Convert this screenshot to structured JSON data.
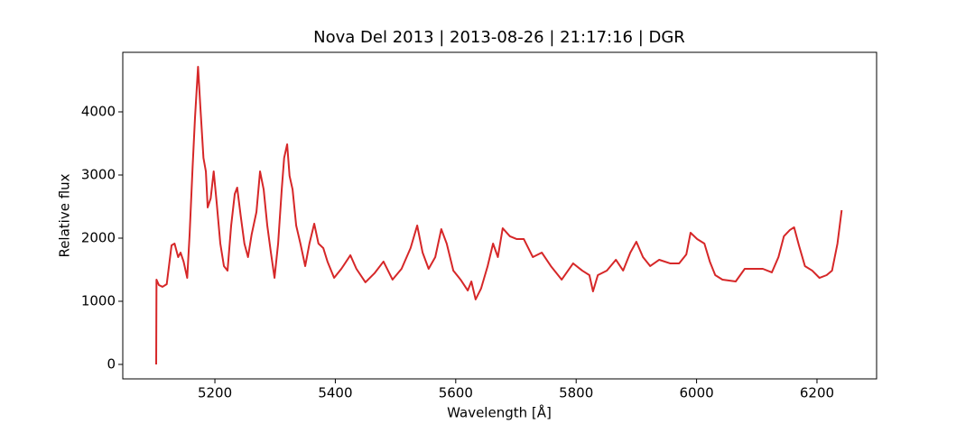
{
  "chart_data": {
    "type": "line",
    "title": "Nova Del 2013 | 2013-08-26 | 21:17:16 | DGR",
    "x_label": "Wavelength [Å]",
    "y_label": "Relative flux",
    "xlim": [
      5047,
      6299
    ],
    "ylim": [
      -229,
      4943
    ],
    "xticks": [
      5200,
      5400,
      5600,
      5800,
      6000,
      6200
    ],
    "yticks": [
      0,
      1000,
      2000,
      3000,
      4000
    ],
    "grid": false,
    "x": [
      5102.5,
      5103,
      5107,
      5113,
      5120,
      5128,
      5133,
      5139,
      5143,
      5148,
      5154,
      5158,
      5163,
      5167,
      5172,
      5176,
      5181,
      5185,
      5188,
      5193,
      5198,
      5203,
      5209,
      5215,
      5221,
      5227,
      5233,
      5237,
      5243,
      5249,
      5255,
      5261,
      5269,
      5275,
      5281,
      5287,
      5293,
      5299,
      5305,
      5311,
      5315,
      5320,
      5324,
      5329,
      5335,
      5342,
      5350,
      5357,
      5365,
      5372,
      5380,
      5387,
      5398,
      5410,
      5425,
      5435,
      5450,
      5465,
      5480,
      5495,
      5510,
      5525,
      5536,
      5545,
      5555,
      5566,
      5576,
      5585,
      5596,
      5608,
      5620,
      5626,
      5633,
      5642,
      5653,
      5662,
      5670,
      5678,
      5690,
      5701,
      5713,
      5728,
      5743,
      5758,
      5776,
      5795,
      5810,
      5822,
      5828,
      5836,
      5851,
      5866,
      5878,
      5890,
      5900,
      5911,
      5923,
      5938,
      5956,
      5971,
      5983,
      5990,
      6001,
      6013,
      6022,
      6031,
      6043,
      6065,
      6080,
      6095,
      6110,
      6125,
      6136,
      6145,
      6155,
      6162,
      6170,
      6180,
      6192,
      6204,
      6216,
      6225,
      6234,
      6241
    ],
    "series": [
      {
        "name": "Nova Del 2013",
        "color": "#d62728",
        "values": [
          0,
          1343,
          1257,
          1229,
          1271,
          1886,
          1914,
          1700,
          1771,
          1629,
          1371,
          2057,
          3129,
          3914,
          4714,
          4057,
          3271,
          3057,
          2486,
          2629,
          3057,
          2557,
          1914,
          1557,
          1486,
          2200,
          2700,
          2800,
          2343,
          1914,
          1700,
          2057,
          2414,
          3057,
          2771,
          2200,
          1771,
          1371,
          1914,
          2771,
          3271,
          3486,
          2986,
          2771,
          2200,
          1914,
          1557,
          1914,
          2229,
          1914,
          1843,
          1629,
          1371,
          1514,
          1729,
          1514,
          1300,
          1443,
          1629,
          1343,
          1514,
          1843,
          2200,
          1771,
          1514,
          1700,
          2143,
          1914,
          1486,
          1343,
          1171,
          1314,
          1029,
          1200,
          1557,
          1914,
          1700,
          2157,
          2029,
          1986,
          1986,
          1700,
          1771,
          1557,
          1343,
          1600,
          1486,
          1414,
          1157,
          1414,
          1486,
          1657,
          1486,
          1771,
          1943,
          1700,
          1557,
          1657,
          1600,
          1600,
          1743,
          2086,
          1986,
          1914,
          1629,
          1414,
          1343,
          1314,
          1514,
          1514,
          1514,
          1457,
          1700,
          2029,
          2129,
          2171,
          1886,
          1557,
          1486,
          1371,
          1414,
          1486,
          1914,
          2443
        ]
      }
    ]
  }
}
